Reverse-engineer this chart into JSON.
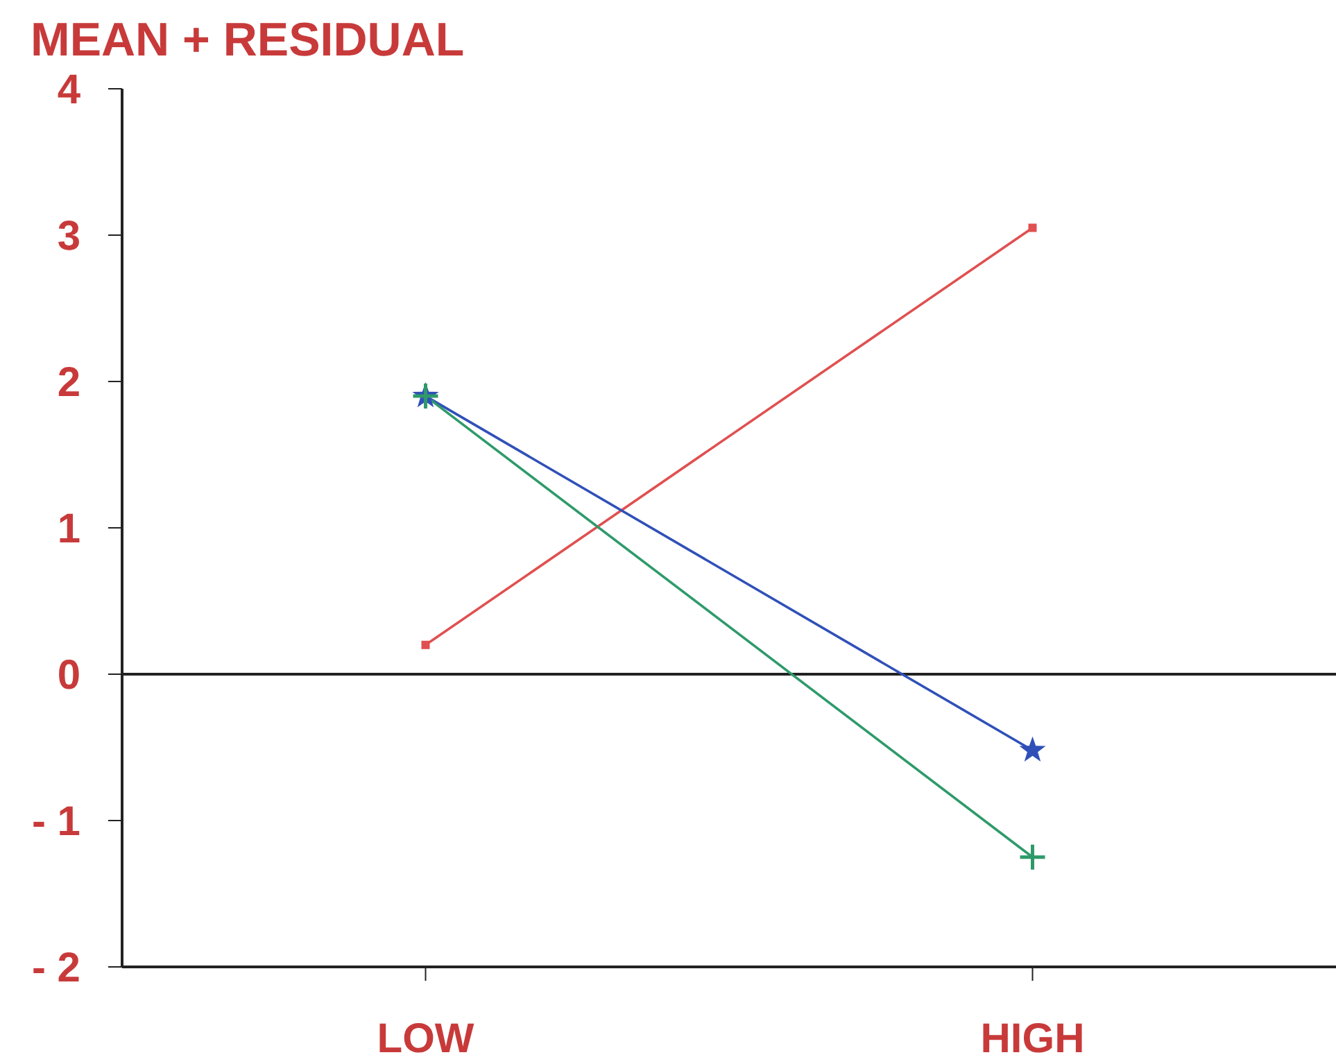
{
  "chart_data": {
    "type": "line",
    "title": "MEAN + RESIDUAL",
    "categories": [
      "LOW",
      "HIGH"
    ],
    "series": [
      {
        "color": "#e05050",
        "values": [
          0.2,
          3.05
        ],
        "marker": "square"
      },
      {
        "color": "#3050b8",
        "values": [
          1.9,
          -0.52
        ],
        "marker": "star"
      },
      {
        "color": "#2e9a6a",
        "values": [
          1.9,
          -1.25
        ],
        "marker": "cross"
      }
    ],
    "ylim": [
      -2,
      4
    ],
    "yticks": [
      -2,
      -1,
      0,
      1,
      2,
      3,
      4
    ],
    "grid": false,
    "legend": false,
    "ref_lines": [
      {
        "axis": "y",
        "value": 0,
        "color": "#222222"
      }
    ]
  }
}
